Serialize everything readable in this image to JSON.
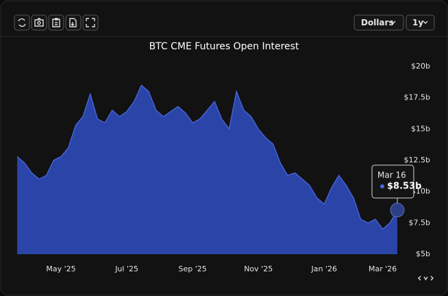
{
  "controls": {
    "currency": "Dollars",
    "range": "1y"
  },
  "chart_data": {
    "type": "area",
    "title": "BTC CME Futures Open Interest",
    "categories": [
      null,
      null,
      null,
      null,
      null,
      null,
      "May '25",
      null,
      null,
      null,
      null,
      null,
      null,
      null,
      null,
      "Jul '25",
      null,
      null,
      null,
      null,
      null,
      null,
      null,
      null,
      "Sep '25",
      null,
      null,
      null,
      null,
      null,
      null,
      null,
      null,
      "Nov '25",
      null,
      null,
      null,
      null,
      null,
      null,
      null,
      null,
      "Jan '26",
      null,
      null,
      null,
      null,
      null,
      null,
      null,
      "Mar '26",
      null,
      null
    ],
    "series": [
      {
        "name": "Open Interest",
        "color": "#2a44a8",
        "values": [
          12.8,
          12.3,
          11.5,
          11.0,
          11.3,
          12.5,
          12.8,
          13.5,
          15.3,
          16.0,
          17.8,
          15.8,
          15.5,
          16.5,
          16.0,
          16.4,
          17.2,
          18.5,
          18.0,
          16.5,
          16.0,
          16.4,
          16.8,
          16.3,
          15.5,
          15.8,
          16.5,
          17.2,
          15.8,
          15.0,
          18.0,
          16.5,
          16.0,
          15.0,
          14.3,
          13.8,
          12.3,
          11.3,
          11.5,
          11.0,
          10.5,
          9.5,
          9.0,
          10.3,
          11.3,
          10.5,
          9.5,
          7.8,
          7.5,
          7.8,
          7.0,
          7.5,
          8.53
        ]
      }
    ],
    "ylim": [
      5,
      20
    ],
    "yticks": [
      {
        "value": 5,
        "label": "$5b"
      },
      {
        "value": 7.5,
        "label": "$7.5b"
      },
      {
        "value": 10,
        "label": "$10b"
      },
      {
        "value": 12.5,
        "label": "$12.5b"
      },
      {
        "value": 15,
        "label": "$15b"
      },
      {
        "value": 17.5,
        "label": "$17.5b"
      },
      {
        "value": 20,
        "label": "$20b"
      }
    ],
    "tooltip": {
      "label": "Mar 16",
      "value": 8.53,
      "value_label": "$8.53b"
    }
  }
}
